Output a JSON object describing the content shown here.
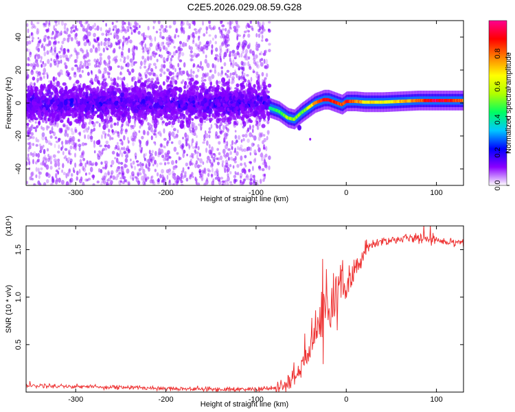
{
  "figure": {
    "title": "C2E5.2026.029.08.59.G28"
  },
  "chart_data": [
    {
      "type": "heatmap",
      "xlabel": "Height of straight line (km)",
      "ylabel": "Frequency (Hz)",
      "xlim": [
        -355,
        130
      ],
      "ylim": [
        -50,
        50
      ],
      "xticks": [
        -300,
        -200,
        -100,
        0,
        100
      ],
      "yticks": [
        -40,
        -20,
        0,
        20,
        40
      ],
      "colorbar": {
        "label": "Normalized spectral amplitude",
        "range": [
          0,
          1
        ],
        "ticks": [
          0.0,
          0.2,
          0.4,
          0.6,
          0.8
        ],
        "colormap": [
          "#ffffff",
          "#8a00ff",
          "#0000ff",
          "#00c8ff",
          "#00ff60",
          "#b0ff00",
          "#ffff00",
          "#ff8000",
          "#ff0000",
          "#ff0090"
        ]
      },
      "scatter_boundary_x": -85,
      "ridge": {
        "x": [
          -85,
          -75,
          -65,
          -58,
          -50,
          -45,
          -40,
          -35,
          -30,
          -25,
          -20,
          -15,
          -10,
          -5,
          0,
          10,
          20,
          40,
          60,
          80,
          100,
          130
        ],
        "y": [
          -3,
          -5,
          -9,
          -10,
          -6,
          -4,
          -2,
          0,
          1,
          2,
          2,
          1,
          0,
          -1,
          1,
          1,
          0.5,
          0.5,
          1,
          1.5,
          1.5,
          1.5
        ],
        "amplitude": [
          0.4,
          0.45,
          0.55,
          0.55,
          0.5,
          0.5,
          0.65,
          0.75,
          0.85,
          0.9,
          0.9,
          0.85,
          0.85,
          0.8,
          0.9,
          0.8,
          0.7,
          0.65,
          0.7,
          0.8,
          0.95,
          0.8
        ]
      }
    },
    {
      "type": "line",
      "xlabel": "Height of straight line (km)",
      "ylabel": "SNR (10 * v/v)",
      "scale_label": "(x10⁴)",
      "xlim": [
        -355,
        130
      ],
      "ylim": [
        0,
        1.75
      ],
      "xticks": [
        -300,
        -200,
        -100,
        0,
        100
      ],
      "yticks": [
        0.5,
        1.0,
        1.5
      ],
      "series": [
        {
          "color": "#ee3333",
          "x": [
            -355,
            -300,
            -250,
            -200,
            -150,
            -120,
            -100,
            -80,
            -70,
            -60,
            -50,
            -45,
            -40,
            -35,
            -30,
            -25,
            -20,
            -15,
            -10,
            -5,
            0,
            5,
            10,
            15,
            20,
            25,
            30,
            40,
            50,
            60,
            70,
            80,
            90,
            100,
            110,
            130
          ],
          "y": [
            0.07,
            0.06,
            0.05,
            0.04,
            0.03,
            0.03,
            0.03,
            0.04,
            0.06,
            0.12,
            0.25,
            0.35,
            0.48,
            0.6,
            0.72,
            0.82,
            0.9,
            0.95,
            1.0,
            1.05,
            1.1,
            1.18,
            1.28,
            1.38,
            1.46,
            1.52,
            1.56,
            1.59,
            1.6,
            1.61,
            1.62,
            1.62,
            1.62,
            1.6,
            1.59,
            1.58
          ]
        }
      ]
    }
  ]
}
